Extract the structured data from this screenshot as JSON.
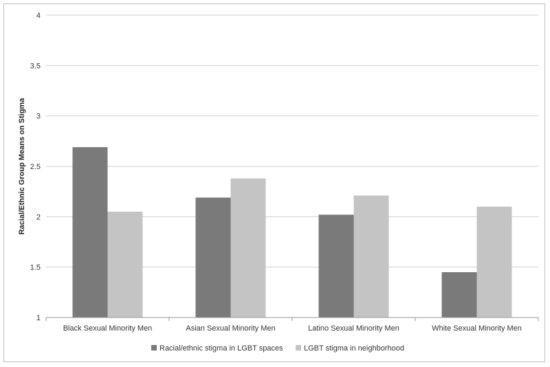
{
  "chart_data": {
    "type": "bar",
    "title": "",
    "xlabel": "",
    "ylabel": "Racial/Ethnic Group Means on Stigma",
    "ylim": [
      1,
      4
    ],
    "yticks": [
      "1",
      "1.5",
      "2",
      "2.5",
      "3",
      "3.5",
      "4"
    ],
    "grid": true,
    "legend_position": "bottom",
    "categories": [
      "Black Sexual Minority Men",
      "Asian Sexual Minority Men",
      "Latino Sexual Minority Men",
      "White Sexual Minority Men"
    ],
    "series": [
      {
        "name": "Racial/ethnic stigma in LGBT spaces",
        "color": "#7a7a7a",
        "values": [
          2.69,
          2.19,
          2.02,
          1.45
        ]
      },
      {
        "name": "LGBT stigma in neighborhood",
        "color": "#c4c4c4",
        "values": [
          2.05,
          2.38,
          2.21,
          2.1
        ]
      }
    ]
  }
}
